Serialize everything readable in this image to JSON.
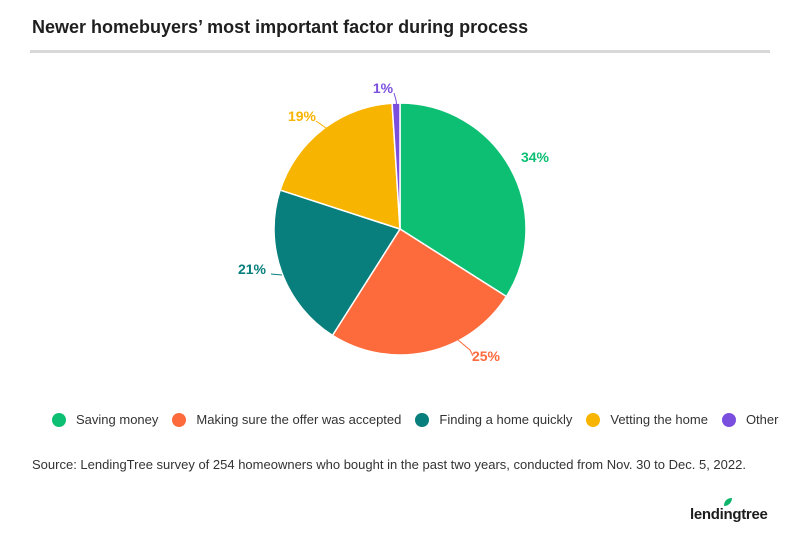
{
  "title": "Newer homebuyers’ most important factor during process",
  "source": "Source: LendingTree survey of 254 homeowners who bought in the past two years, conducted from Nov. 30 to Dec. 5, 2022.",
  "brand": {
    "name": "lendingtree",
    "color": "#0bb36b"
  },
  "chart_data": {
    "type": "pie",
    "title": "Newer homebuyers’ most important factor during process",
    "legend_position": "bottom",
    "slices": [
      {
        "label": "Saving money",
        "value": 34,
        "display": "34%",
        "color": "#0dbf73"
      },
      {
        "label": "Making sure the offer was accepted",
        "value": 25,
        "display": "25%",
        "color": "#fd6a3b"
      },
      {
        "label": "Finding a home quickly",
        "value": 21,
        "display": "21%",
        "color": "#087f7c"
      },
      {
        "label": "Vetting the home",
        "value": 19,
        "display": "19%",
        "color": "#f7b400"
      },
      {
        "label": "Other",
        "value": 1,
        "display": "1%",
        "color": "#7b4fde"
      }
    ]
  }
}
